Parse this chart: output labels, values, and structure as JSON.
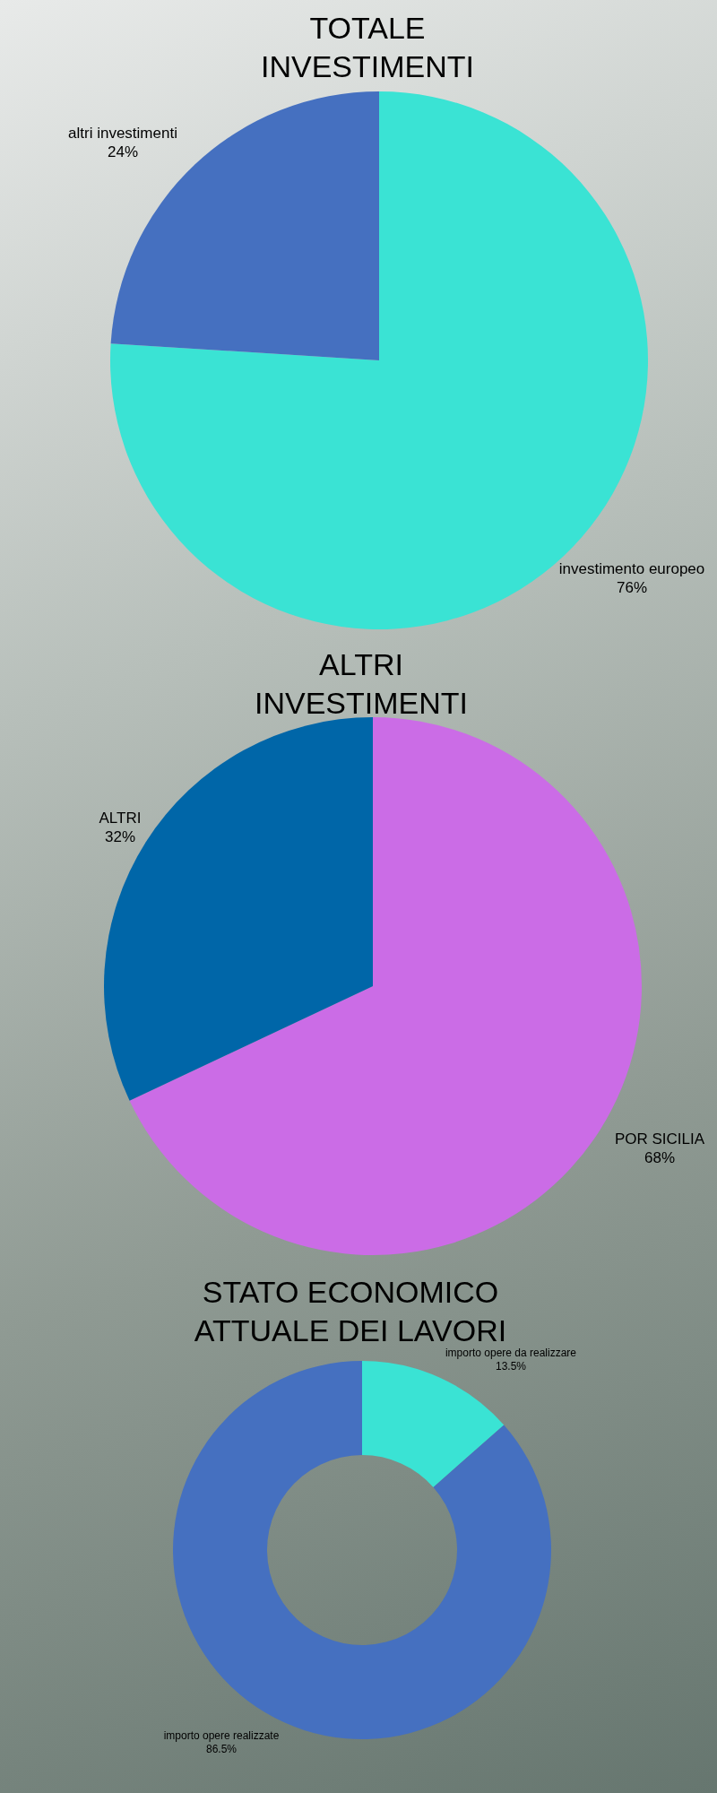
{
  "chart_data": [
    {
      "type": "pie",
      "title": "TOTALE INVESTIMENTI",
      "categories": [
        "investimento europeo",
        "altri investimenti"
      ],
      "values": [
        76,
        24
      ],
      "value_labels": [
        "76%",
        "24%"
      ],
      "colors": [
        "#3ae3d4",
        "#4570c0"
      ],
      "legend": false
    },
    {
      "type": "pie",
      "title": "ALTRI INVESTIMENTI",
      "categories": [
        "POR SICILIA",
        "ALTRI"
      ],
      "values": [
        68,
        32
      ],
      "value_labels": [
        "68%",
        "32%"
      ],
      "colors": [
        "#cb6ce6",
        "#0066a8"
      ],
      "legend": false
    },
    {
      "type": "donut",
      "title": "STATO ECONOMICO ATTUALE DEI LAVORI",
      "categories": [
        "importo opere da realizzare",
        "importo opere realizzate"
      ],
      "values": [
        13.5,
        86.5
      ],
      "value_labels": [
        "13.5%",
        "86.5%"
      ],
      "colors": [
        "#3ae3d4",
        "#4570c0"
      ],
      "legend": false
    }
  ]
}
